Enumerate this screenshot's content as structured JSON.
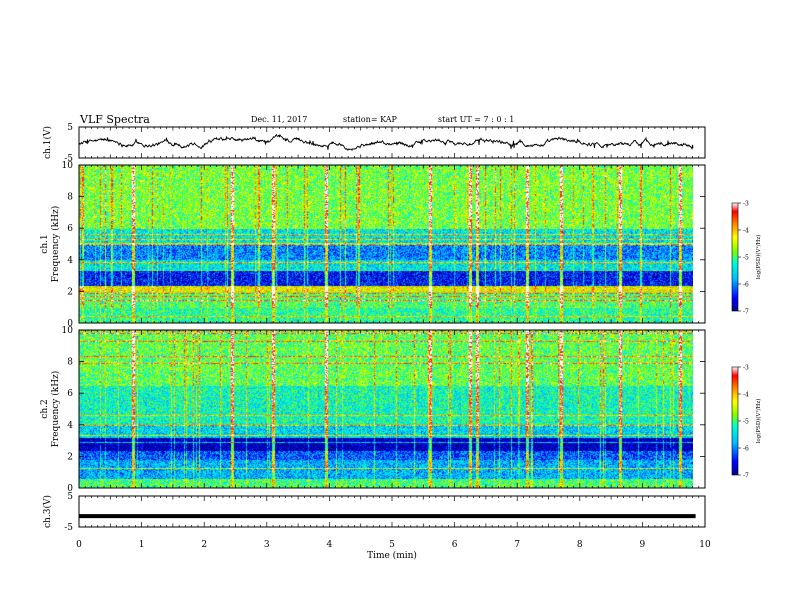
{
  "header": {
    "title": "VLF Spectra",
    "date": "Dec. 11, 2017",
    "station": "station= KAP",
    "start_ut": "start  UT =  7 : 0  : 1"
  },
  "colors": {
    "spectrum": [
      "#00008b",
      "#0000ff",
      "#00bfff",
      "#00ffd0",
      "#7cfc00",
      "#ffff00",
      "#ff8c00",
      "#ff0000",
      "#ffffff"
    ],
    "trace": "#000000"
  },
  "chart_data": [
    {
      "type": "line",
      "name": "ch1-waveform",
      "ylabel": "ch.1(V)",
      "ylim": [
        -5,
        5
      ],
      "yticks": [
        "5",
        "-5"
      ],
      "xlim": [
        0,
        10
      ],
      "description_series": "noisy voltage trace around 0 V, amplitude ~ +/-2 V, data ends near 9.85 min"
    },
    {
      "type": "heatmap",
      "name": "ch1-spectrogram",
      "ylabel": "ch.1\nFrequency (kHz)",
      "ylim": [
        0,
        10
      ],
      "yticks": [
        "0",
        "2",
        "4",
        "6",
        "8",
        "10"
      ],
      "xlim": [
        0,
        10
      ],
      "colorbar": {
        "label": "log(PSD)(V²/Hz)",
        "ticks": [
          "-3",
          "-4",
          "-5",
          "-6",
          "-7"
        ],
        "range": [
          -7,
          -3
        ]
      },
      "bands": [
        {
          "fmin": 0,
          "fmax": 1.0,
          "level": -5.2
        },
        {
          "fmin": 1.0,
          "fmax": 2.0,
          "level": -5.0
        },
        {
          "fmin": 2.0,
          "fmax": 2.4,
          "level": -4.3
        },
        {
          "fmin": 2.4,
          "fmax": 3.4,
          "level": -6.5
        },
        {
          "fmin": 3.4,
          "fmax": 4.0,
          "level": -5.5
        },
        {
          "fmin": 4.0,
          "fmax": 5.0,
          "level": -6.0
        },
        {
          "fmin": 5.0,
          "fmax": 6.0,
          "level": -5.5
        },
        {
          "fmin": 6.0,
          "fmax": 10.0,
          "level": -4.8
        }
      ]
    },
    {
      "type": "heatmap",
      "name": "ch2-spectrogram",
      "ylabel": "ch.2\nFrequency (kHz)",
      "ylim": [
        0,
        10
      ],
      "yticks": [
        "0",
        "2",
        "4",
        "6",
        "8",
        "10"
      ],
      "xlim": [
        0,
        10
      ],
      "colorbar": {
        "label": "log(PSD)(V²/Hz)",
        "ticks": [
          "-3",
          "-4",
          "-5",
          "-6",
          "-7"
        ],
        "range": [
          -7,
          -3
        ]
      },
      "bands": [
        {
          "fmin": 0,
          "fmax": 0.6,
          "level": -5.0
        },
        {
          "fmin": 0.6,
          "fmax": 1.8,
          "level": -5.8
        },
        {
          "fmin": 1.8,
          "fmax": 2.4,
          "level": -6.2
        },
        {
          "fmin": 2.4,
          "fmax": 3.2,
          "level": -6.9
        },
        {
          "fmin": 3.2,
          "fmax": 4.0,
          "level": -5.6
        },
        {
          "fmin": 4.0,
          "fmax": 6.5,
          "level": -5.3
        },
        {
          "fmin": 6.5,
          "fmax": 10.0,
          "level": -4.9
        }
      ]
    },
    {
      "type": "line",
      "name": "ch3-waveform",
      "ylabel": "ch.3(V)",
      "ylim": [
        -5,
        5
      ],
      "yticks": [
        "5",
        "-5"
      ],
      "xlim": [
        0,
        10
      ],
      "xlabel": "Time (min)",
      "xticks": [
        "0",
        "1",
        "2",
        "3",
        "4",
        "5",
        "6",
        "7",
        "8",
        "9",
        "10"
      ],
      "constant_value": -1.5,
      "data_end": 9.85
    }
  ],
  "events_min": [
    0.87,
    2.45,
    3.1,
    3.95,
    5.6,
    6.25,
    6.35,
    7.15,
    7.7,
    8.65,
    9.6
  ]
}
